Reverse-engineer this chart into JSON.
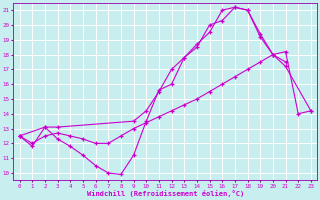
{
  "bg_color": "#c8eef0",
  "line_color": "#cc00cc",
  "grid_color": "#ffffff",
  "xlabel": "Windchill (Refroidissement éolien,°C)",
  "xlim": [
    -0.5,
    23.5
  ],
  "ylim": [
    9.5,
    21.5
  ],
  "line_a_x": [
    0,
    1,
    2,
    3,
    4,
    5,
    6,
    7,
    8,
    9,
    10,
    11,
    12,
    13,
    14,
    15,
    16,
    17,
    18,
    19,
    20,
    21
  ],
  "line_a_y": [
    12.5,
    11.8,
    13.1,
    12.3,
    11.8,
    11.2,
    10.5,
    10.0,
    9.9,
    11.2,
    13.5,
    15.6,
    16.0,
    17.8,
    18.5,
    20.0,
    20.3,
    21.2,
    21.0,
    19.4,
    18.0,
    17.5
  ],
  "line_b_x": [
    0,
    1,
    2,
    3,
    4,
    5,
    6,
    7,
    8,
    9,
    10,
    11,
    12,
    13,
    14,
    15,
    16,
    17,
    18,
    19,
    20,
    21,
    22,
    23
  ],
  "line_b_y": [
    12.5,
    12.0,
    12.5,
    12.7,
    12.5,
    12.3,
    12.0,
    12.0,
    12.5,
    13.0,
    13.4,
    13.8,
    14.2,
    14.6,
    15.0,
    15.5,
    16.0,
    16.5,
    17.0,
    17.5,
    18.0,
    18.2,
    14.0,
    14.2
  ],
  "line_c_x": [
    0,
    2,
    3,
    9,
    10,
    11,
    12,
    13,
    14,
    15,
    16,
    17,
    18,
    19,
    20,
    21,
    23
  ],
  "line_c_y": [
    12.5,
    13.1,
    13.1,
    13.5,
    14.2,
    15.5,
    17.0,
    17.8,
    18.7,
    19.5,
    21.0,
    21.2,
    21.0,
    19.2,
    18.0,
    17.2,
    14.2
  ]
}
